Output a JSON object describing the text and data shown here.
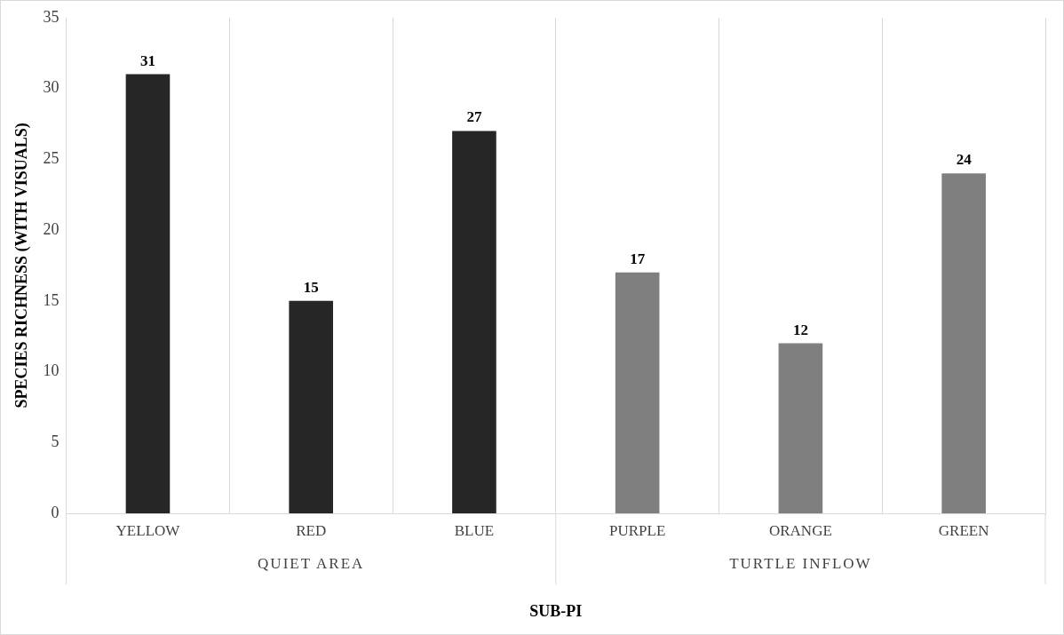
{
  "chart_data": {
    "type": "bar",
    "xlabel": "SUB-PI",
    "ylabel": "SPECIES RICHNESS (WITH VISUALS)",
    "categories": [
      "YELLOW",
      "RED",
      "BLUE",
      "PURPLE",
      "ORANGE",
      "GREEN"
    ],
    "values": [
      31,
      15,
      27,
      17,
      12,
      24
    ],
    "colors": [
      "#262626",
      "#262626",
      "#262626",
      "#7f7f7f",
      "#7f7f7f",
      "#7f7f7f"
    ],
    "ylim": [
      0,
      35
    ],
    "yticks": [
      0,
      5,
      10,
      15,
      20,
      25,
      30,
      35
    ],
    "grid": "x",
    "data_labels": true,
    "legend": false,
    "annotations": [
      "QUIET AREA",
      "TURTLE INFLOW"
    ]
  }
}
